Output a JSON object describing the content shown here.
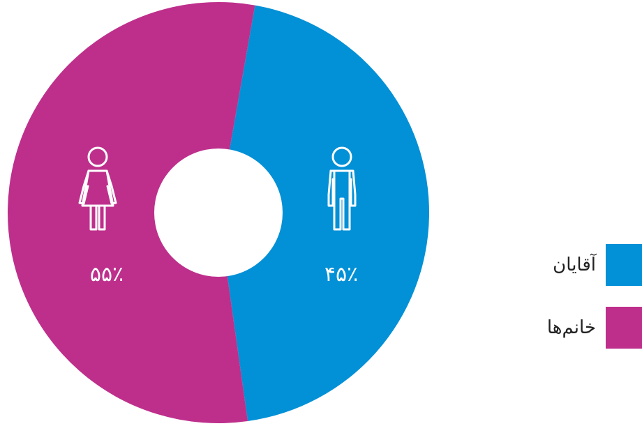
{
  "colors": {
    "men": "#0290d6",
    "women": "#be2f8c",
    "hole": "#ffffff",
    "text": "#ffffff"
  },
  "icons": {
    "men": "man-icon",
    "women": "woman-icon"
  },
  "chart_data": {
    "type": "pie",
    "variant": "donut",
    "title": "",
    "categories": [
      "آقایان",
      "خانم‌ها"
    ],
    "values": [
      45,
      55
    ],
    "value_labels": [
      "۴۵٪",
      "۵۵٪"
    ],
    "legend": {
      "position": "right",
      "entries": [
        "آقایان",
        "خانم‌ها"
      ]
    }
  }
}
